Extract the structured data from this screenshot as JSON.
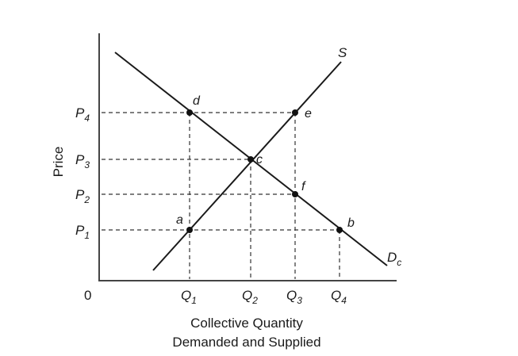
{
  "axes": {
    "y_label": "Price",
    "origin_label": "0",
    "x_label_line1": "Collective Quantity",
    "x_label_line2": "Demanded and Supplied"
  },
  "price_ticks": [
    {
      "base": "P",
      "sub": "4"
    },
    {
      "base": "P",
      "sub": "3"
    },
    {
      "base": "P",
      "sub": "2"
    },
    {
      "base": "P",
      "sub": "1"
    }
  ],
  "quantity_ticks": [
    {
      "base": "Q",
      "sub": "1"
    },
    {
      "base": "Q",
      "sub": "2"
    },
    {
      "base": "Q",
      "sub": "3"
    },
    {
      "base": "Q",
      "sub": "4"
    }
  ],
  "curves": {
    "supply_label": "S",
    "demand_label": "D",
    "demand_sub": "c"
  },
  "points": {
    "a": "a",
    "b": "b",
    "c": "c",
    "d": "d",
    "e": "e",
    "f": "f"
  }
}
